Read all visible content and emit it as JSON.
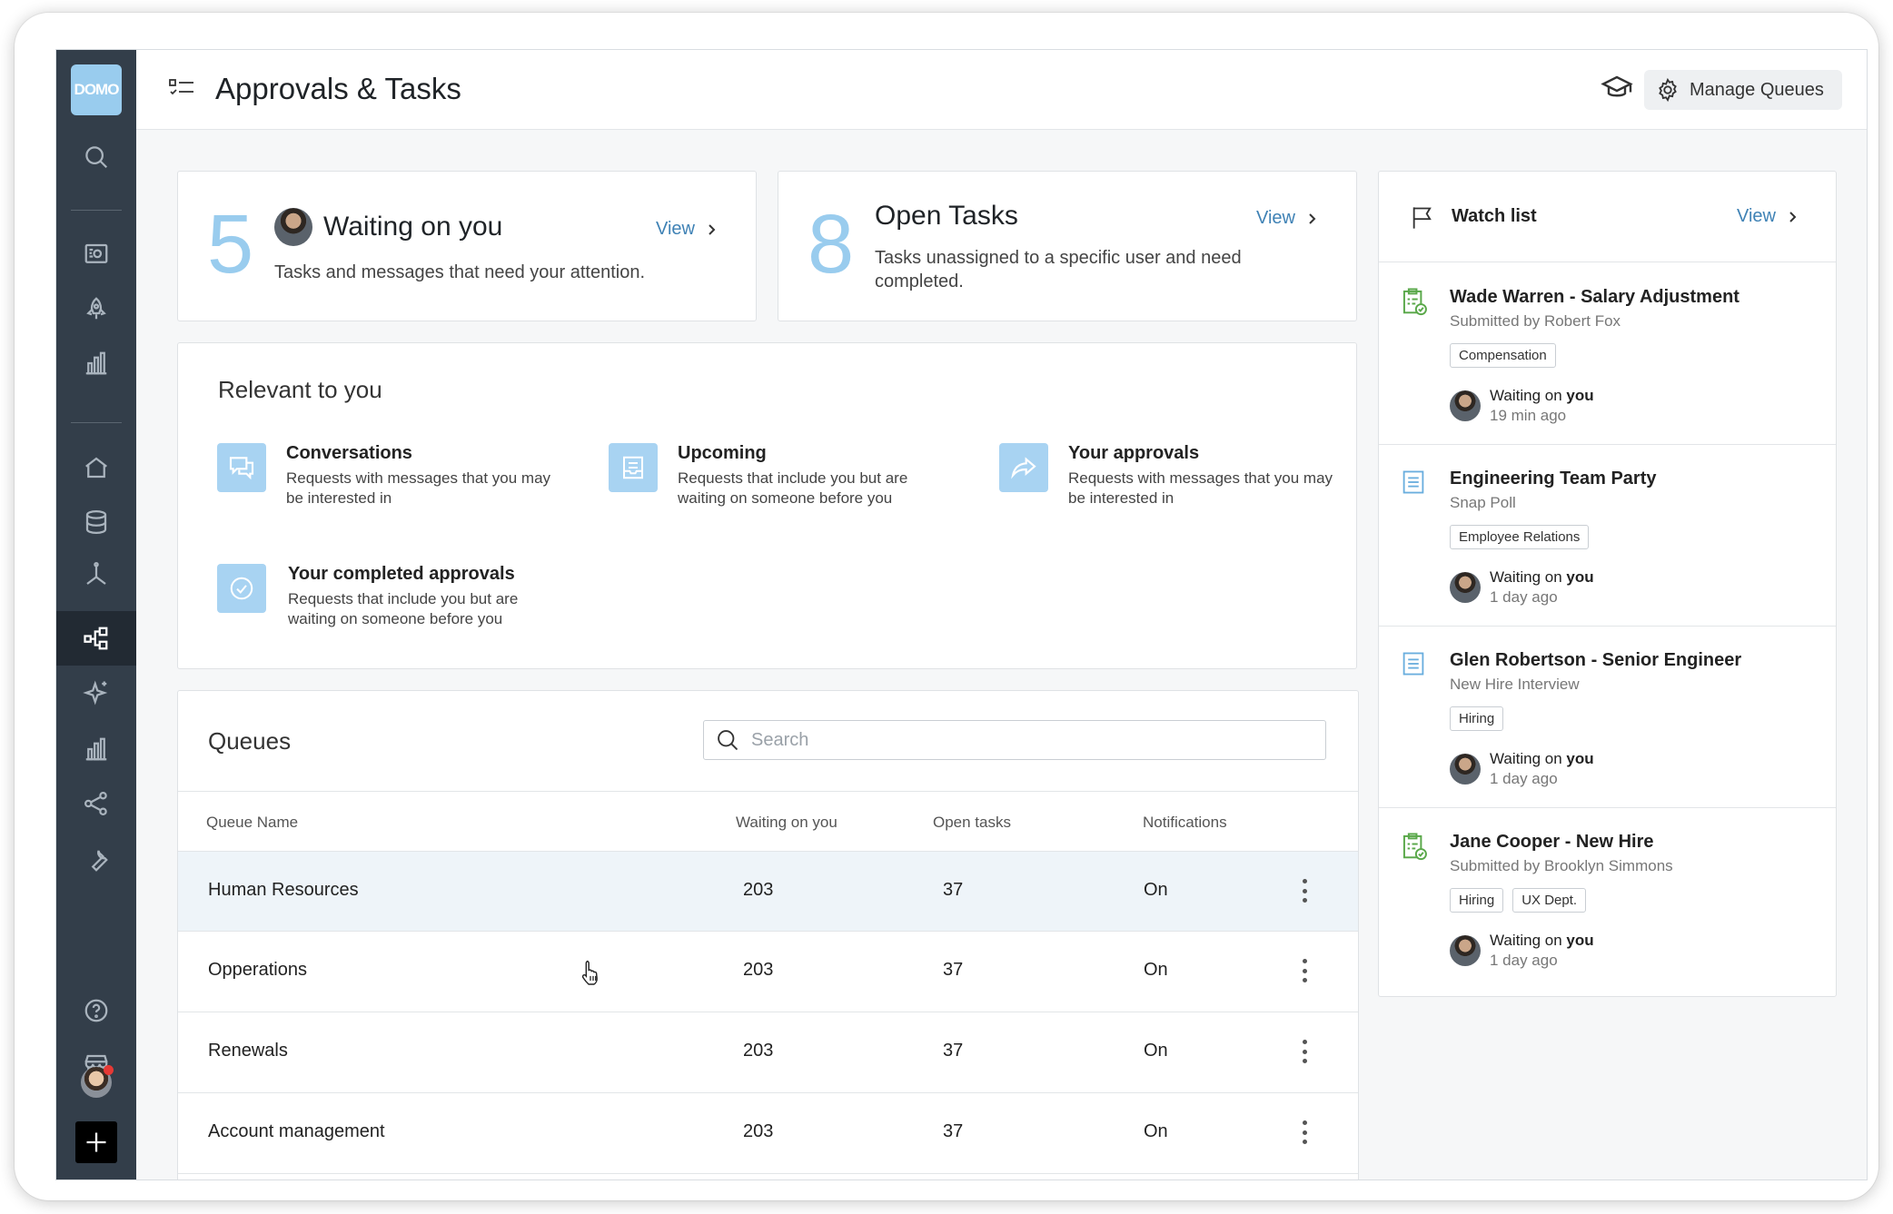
{
  "sidebar": {
    "logo": "DOMO",
    "icons": [
      "search-icon",
      "dashboard-icon",
      "rocket-icon",
      "bar-chart-icon",
      "home-icon",
      "database-icon",
      "dataflow-icon",
      "workflow-icon",
      "ai-sparkle-icon",
      "analytics-icon",
      "share-icon",
      "wrench-icon",
      "help-icon",
      "store-icon"
    ]
  },
  "header": {
    "title": "Approvals & Tasks",
    "manage_label": "Manage Queues"
  },
  "waiting": {
    "count": "5",
    "title": "Waiting on you",
    "view_label": "View",
    "description": "Tasks and messages that need your attention."
  },
  "open_tasks": {
    "count": "8",
    "title": "Open Tasks",
    "view_label": "View",
    "description": "Tasks unassigned to a specific user and need completed."
  },
  "relevant": {
    "title": "Relevant to you",
    "items": [
      {
        "title": "Conversations",
        "description": "Requests with messages that you may be interested in"
      },
      {
        "title": "Upcoming",
        "description": "Requests that include you but are waiting on someone before you"
      },
      {
        "title": "Your approvals",
        "description": "Requests with messages that you may be interested in"
      },
      {
        "title": "Your completed approvals",
        "description": "Requests that include you but are waiting on someone before you"
      }
    ]
  },
  "queues": {
    "title": "Queues",
    "search_placeholder": "Search",
    "columns": [
      "Queue Name",
      "Waiting on you",
      "Open tasks",
      "Notifications"
    ],
    "rows": [
      {
        "name": "Human Resources",
        "waiting": "203",
        "open": "37",
        "notifications": "On"
      },
      {
        "name": "Opperations",
        "waiting": "203",
        "open": "37",
        "notifications": "On"
      },
      {
        "name": "Renewals",
        "waiting": "203",
        "open": "37",
        "notifications": "On"
      },
      {
        "name": "Account management",
        "waiting": "203",
        "open": "37",
        "notifications": "On"
      }
    ]
  },
  "watchlist": {
    "title": "Watch list",
    "view_label": "View",
    "waiting_prefix": "Waiting on ",
    "waiting_you": "you",
    "items": [
      {
        "icon": "clipboard-check-icon",
        "title": "Wade Warren - Salary Adjustment",
        "subtitle": "Submitted by Robert Fox",
        "tags": [
          "Compensation"
        ],
        "time": "19 min ago"
      },
      {
        "icon": "form-icon",
        "title": "Engineering Team Party",
        "subtitle": "Snap Poll",
        "tags": [
          "Employee Relations"
        ],
        "time": "1 day ago"
      },
      {
        "icon": "form-icon",
        "title": "Glen Robertson - Senior Engineer",
        "subtitle": "New Hire Interview",
        "tags": [
          "Hiring"
        ],
        "time": "1 day ago"
      },
      {
        "icon": "clipboard-check-icon",
        "title": "Jane Cooper - New Hire",
        "subtitle": "Submitted by Brooklyn Simmons",
        "tags": [
          "Hiring",
          "UX Dept."
        ],
        "time": "1 day ago"
      }
    ]
  },
  "colors": {
    "sidebar": "#333e4a",
    "accent": "#99ccee",
    "link": "#3f82b5",
    "success": "#5aa84a"
  }
}
